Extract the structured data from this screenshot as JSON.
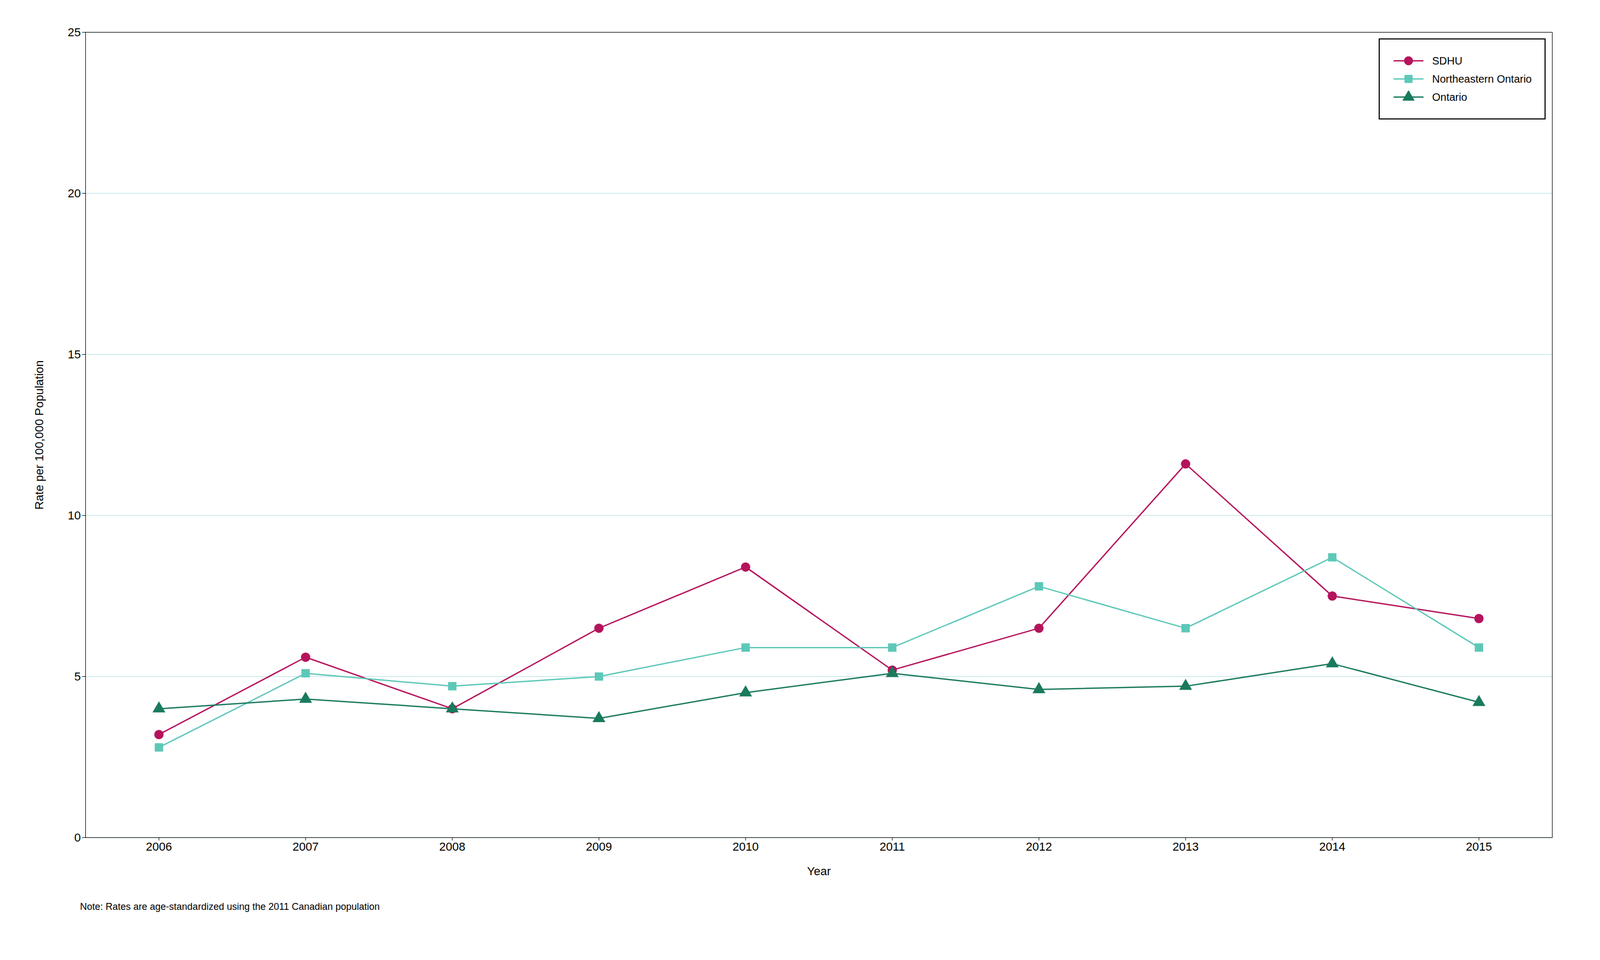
{
  "chart_data": {
    "type": "line",
    "xlabel": "Year",
    "ylabel": "Rate per 100,000 Population",
    "note": "Note: Rates are age-standardized using the 2011 Canadian population",
    "x": [
      2006,
      2007,
      2008,
      2009,
      2010,
      2011,
      2012,
      2013,
      2014,
      2015
    ],
    "series": [
      {
        "name": "SDHU",
        "color": "#b5135b",
        "marker": "circle",
        "values": [
          3.2,
          5.6,
          4.0,
          6.5,
          8.4,
          5.2,
          6.5,
          11.6,
          7.5,
          6.8
        ]
      },
      {
        "name": "Northeastern Ontario",
        "color": "#5dc8b8",
        "marker": "square",
        "values": [
          2.8,
          5.1,
          4.7,
          5.0,
          5.9,
          5.9,
          7.8,
          6.5,
          8.7,
          5.9
        ]
      },
      {
        "name": "Ontario",
        "color": "#1a7a5e",
        "marker": "triangle",
        "values": [
          4.0,
          4.3,
          4.0,
          3.7,
          4.5,
          5.1,
          4.6,
          4.7,
          5.4,
          4.2
        ]
      }
    ],
    "xlim": [
      2005.5,
      2015.5
    ],
    "xticks": [
      2006,
      2007,
      2008,
      2009,
      2010,
      2011,
      2012,
      2013,
      2014,
      2015
    ],
    "ylim": [
      0,
      25
    ],
    "yticks": [
      0,
      5,
      10,
      15,
      20,
      25
    ],
    "grid": true,
    "legend": "upper right"
  }
}
